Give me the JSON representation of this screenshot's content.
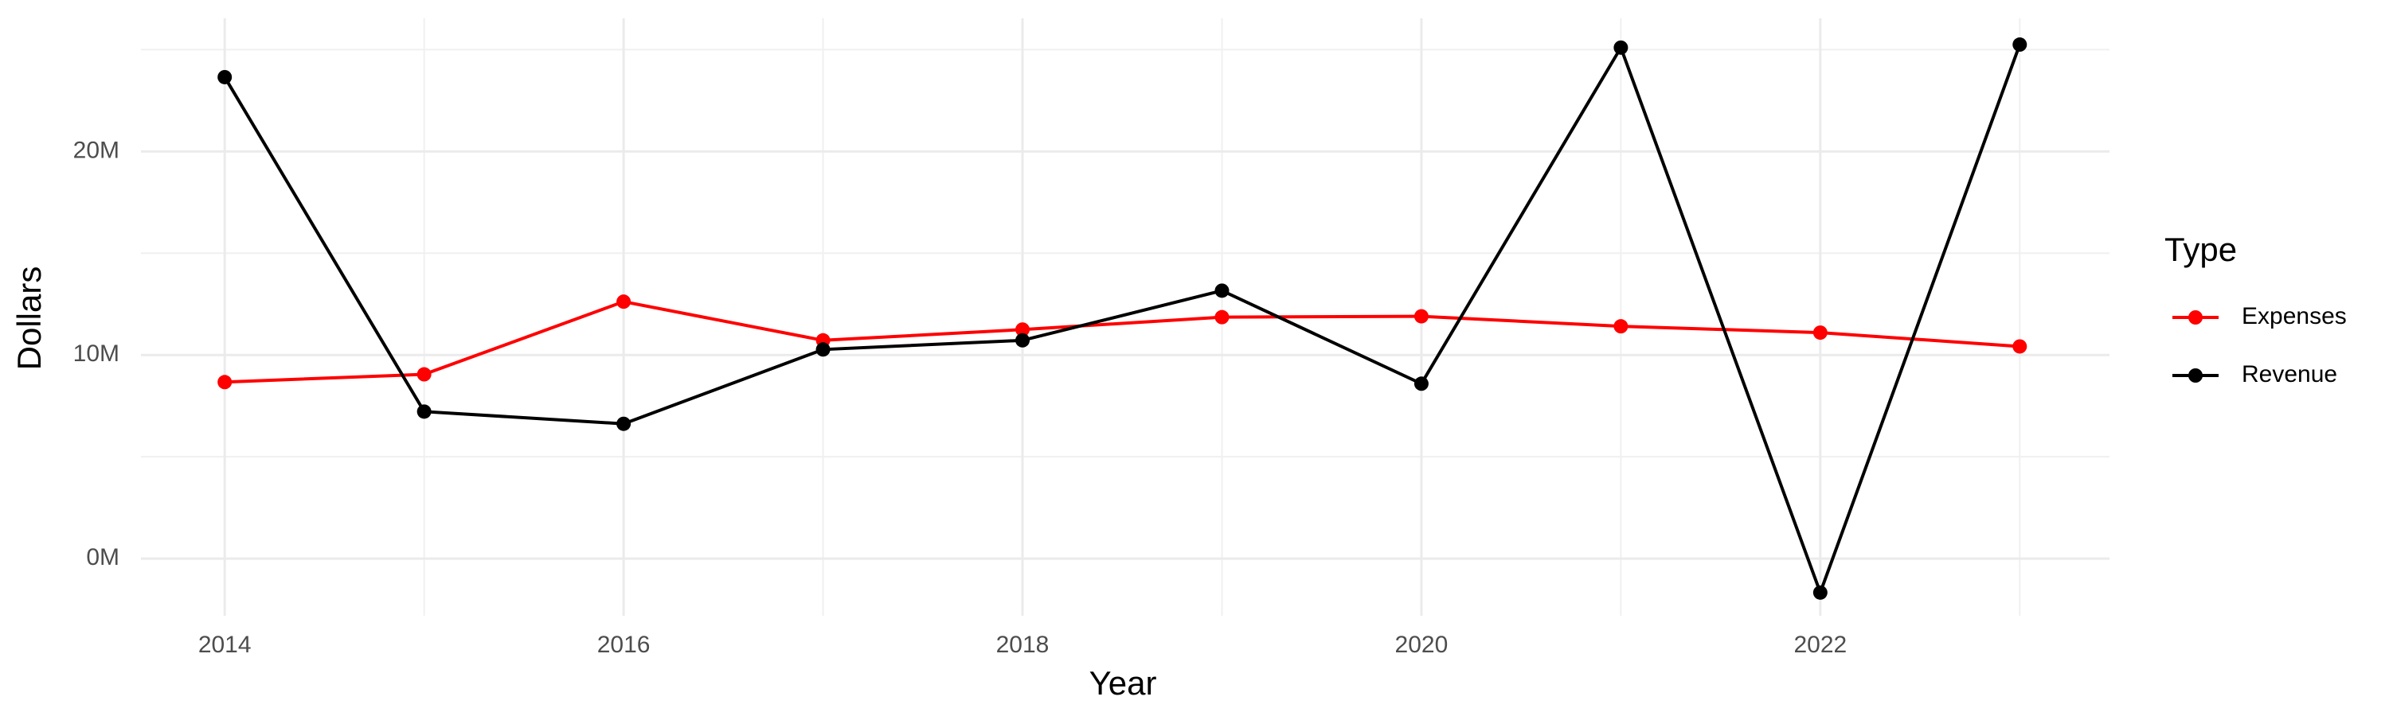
{
  "chart_data": {
    "type": "line",
    "x_label": "Year",
    "y_label": "Dollars",
    "legend_title": "Type",
    "x": [
      2014,
      2015,
      2016,
      2017,
      2018,
      2019,
      2020,
      2021,
      2022,
      2023
    ],
    "series": [
      {
        "name": "Expenses",
        "color": "#ff0000",
        "values": [
          8670000,
          9050000,
          12620000,
          10720000,
          11250000,
          11860000,
          11900000,
          11410000,
          11100000,
          10420000
        ]
      },
      {
        "name": "Revenue",
        "color": "#000000",
        "values": [
          23650000,
          7220000,
          6620000,
          10270000,
          10720000,
          13160000,
          8590000,
          25100000,
          -1670000,
          25250000
        ]
      }
    ],
    "xlim": [
      2013.58,
      2023.45
    ],
    "xticks": [
      2014,
      2016,
      2018,
      2020,
      2022
    ],
    "ylim": [
      -2810000,
      26540000
    ],
    "yticks": [
      {
        "value": 0,
        "label": "0M"
      },
      {
        "value": 10000000,
        "label": "10M"
      },
      {
        "value": 20000000,
        "label": "20M"
      }
    ],
    "grid": true,
    "legend": "right"
  }
}
